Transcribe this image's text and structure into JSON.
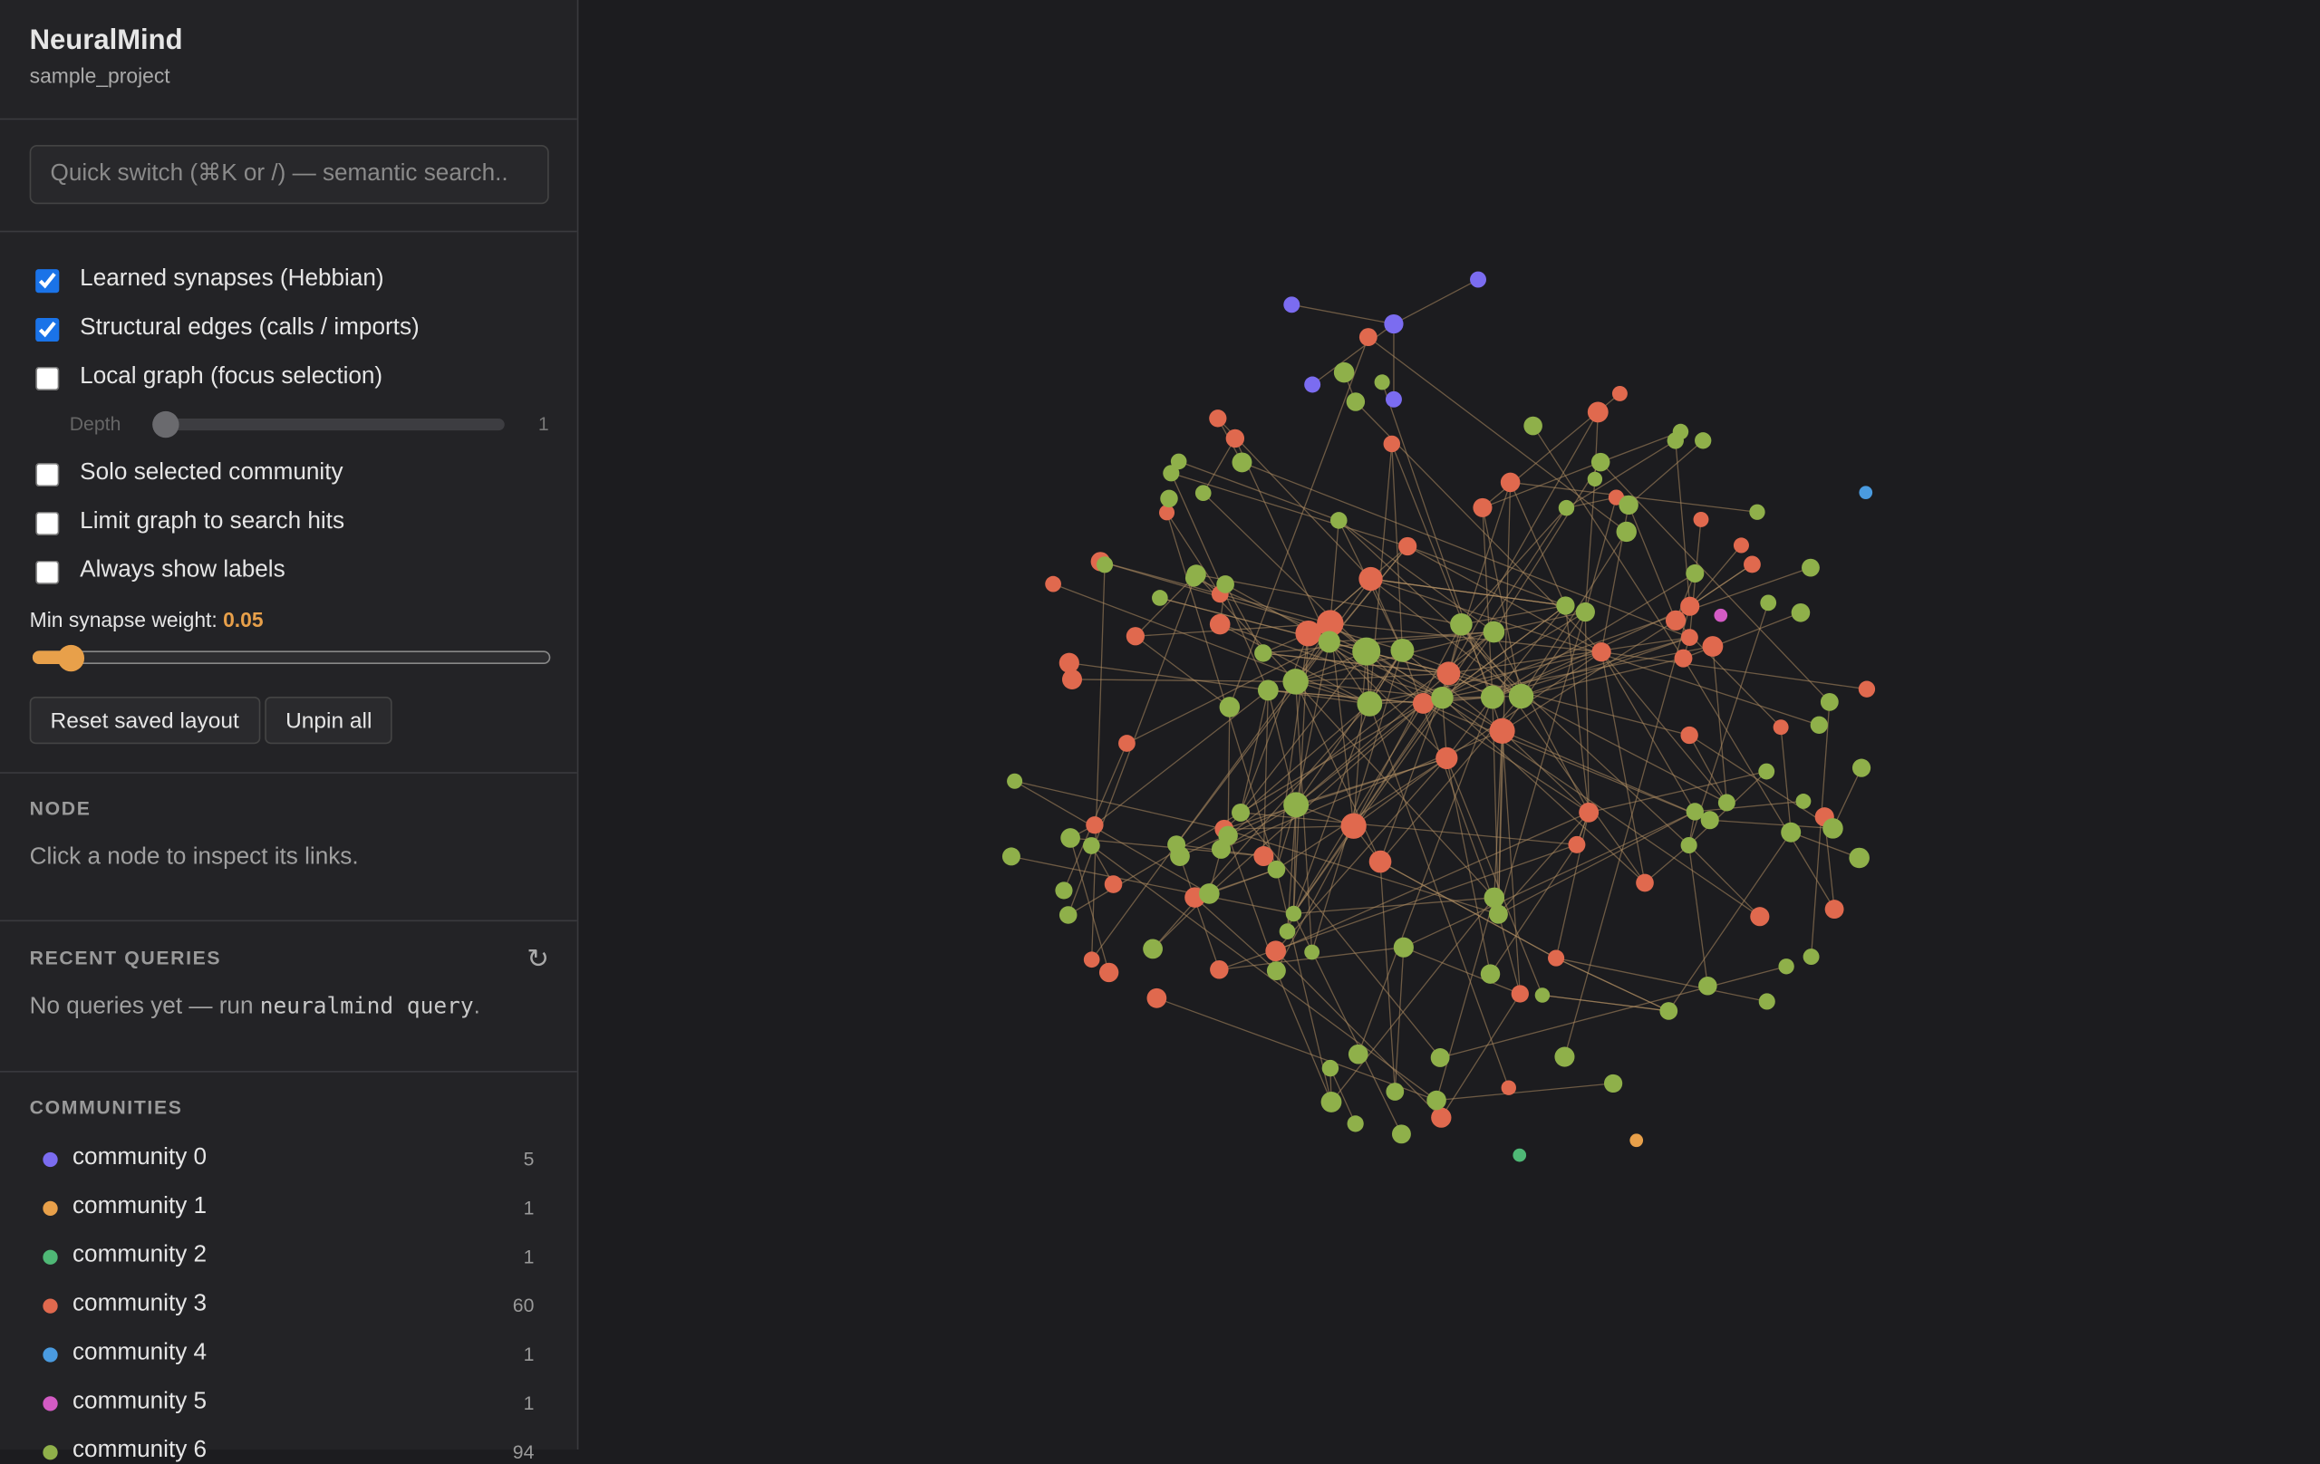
{
  "header": {
    "title": "NeuralMind",
    "subtitle": "sample_project"
  },
  "search": {
    "placeholder": "Quick switch (⌘K or /) — semantic search.."
  },
  "toggles": [
    {
      "label": "Learned synapses (Hebbian)",
      "checked": true
    },
    {
      "label": "Structural edges (calls / imports)",
      "checked": true
    },
    {
      "label": "Local graph (focus selection)",
      "checked": false
    },
    {
      "label": "Solo selected community",
      "checked": false
    },
    {
      "label": "Limit graph to search hits",
      "checked": false
    },
    {
      "label": "Always show labels",
      "checked": false
    }
  ],
  "depth": {
    "label": "Depth",
    "value": 1
  },
  "min_weight": {
    "label": "Min synapse weight:",
    "value": 0.05
  },
  "buttons": [
    "Reset saved layout",
    "Unpin all"
  ],
  "node_panel": {
    "title": "NODE",
    "hint": "Click a node to inspect its links."
  },
  "recent_queries": {
    "title": "RECENT QUERIES",
    "refresh": "↻",
    "text_before": "No queries yet — run ",
    "code": "neuralmind query",
    "text_after": "."
  },
  "communities": {
    "title": "COMMUNITIES",
    "items": [
      {
        "name": "community 0",
        "count": 5,
        "color": "#7b6cf0"
      },
      {
        "name": "community 1",
        "count": 1,
        "color": "#e8a04a"
      },
      {
        "name": "community 2",
        "count": 1,
        "color": "#4fb876"
      },
      {
        "name": "community 3",
        "count": 60,
        "color": "#e0694e"
      },
      {
        "name": "community 4",
        "count": 1,
        "color": "#4a9be0"
      },
      {
        "name": "community 5",
        "count": 1,
        "color": "#d35bc4"
      },
      {
        "name": "community 6",
        "count": 94,
        "color": "#8fb04a"
      }
    ]
  }
}
